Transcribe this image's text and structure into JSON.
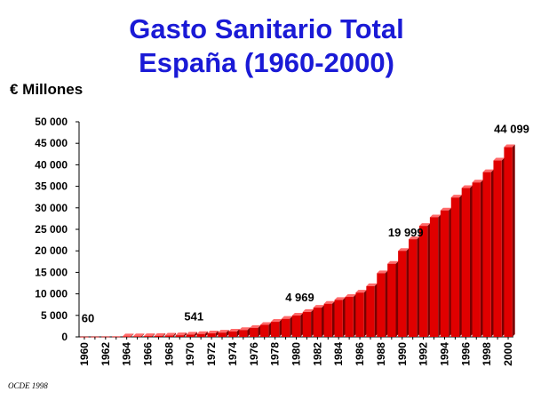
{
  "chart_data": {
    "type": "bar",
    "title_line1": "Gasto Sanitario Total",
    "title_line2": "España (1960-2000)",
    "ylabel": "€ Millones",
    "source": "OCDE 1998",
    "ylim": [
      0,
      50000
    ],
    "ytick_labels": [
      "0",
      "5 000",
      "10 000",
      "15 000",
      "20 000",
      "25 000",
      "30 000",
      "35 000",
      "40 000",
      "45 000",
      "50 000"
    ],
    "xtick_labels": [
      "1960",
      "1962",
      "1964",
      "1966",
      "1968",
      "1970",
      "1972",
      "1974",
      "1976",
      "1978",
      "1980",
      "1982",
      "1984",
      "1986",
      "1988",
      "1990",
      "1992",
      "1994",
      "1996",
      "1998",
      "2000"
    ],
    "categories": [
      "1960",
      "1961",
      "1962",
      "1963",
      "1964",
      "1965",
      "1966",
      "1967",
      "1968",
      "1969",
      "1970",
      "1971",
      "1972",
      "1973",
      "1974",
      "1975",
      "1976",
      "1977",
      "1978",
      "1979",
      "1980",
      "1981",
      "1982",
      "1983",
      "1984",
      "1985",
      "1986",
      "1987",
      "1988",
      "1989",
      "1990",
      "1991",
      "1992",
      "1993",
      "1994",
      "1995",
      "1996",
      "1997",
      "1998",
      "1999",
      "2000"
    ],
    "values": [
      60,
      70,
      85,
      100,
      125,
      155,
      190,
      240,
      300,
      380,
      541,
      680,
      820,
      1000,
      1250,
      1600,
      2100,
      2800,
      3500,
      4200,
      4969,
      5800,
      6800,
      7700,
      8600,
      9300,
      10300,
      11800,
      14800,
      17000,
      19999,
      22700,
      25800,
      27800,
      29400,
      32400,
      34600,
      35900,
      38300,
      41000,
      44099
    ],
    "data_labels": [
      {
        "category": "1960",
        "text": "60"
      },
      {
        "category": "1970",
        "text": "541"
      },
      {
        "category": "1980",
        "text": "4 969"
      },
      {
        "category": "1990",
        "text": "19 999"
      },
      {
        "category": "2000",
        "text": "44 099"
      }
    ],
    "colors": {
      "bar": "#e00000",
      "bar_side": "#7a0000",
      "bar_top": "#ff6a6a",
      "title": "#1a1ad6"
    },
    "grid": false,
    "legend": "none"
  }
}
